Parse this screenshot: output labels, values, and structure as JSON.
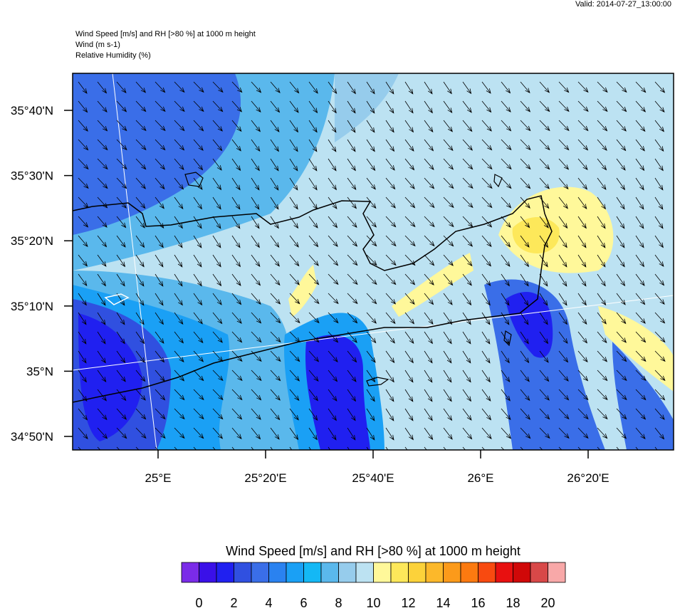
{
  "valid": "Valid: 2014-07-27_13:00:00",
  "header": [
    "Wind Speed [m/s] and RH [>80 %] at 1000 m height",
    "Wind   (m s-1)",
    "Relative Humidity   (%)"
  ],
  "lat_labels": [
    "35°40'N",
    "35°30'N",
    "35°20'N",
    "35°10'N",
    "35°N",
    "34°50'N"
  ],
  "lon_labels": [
    "25°E",
    "25°20'E",
    "25°40'E",
    "26°E",
    "26°20'E"
  ],
  "colorbar": {
    "title": "Wind Speed [m/s] and RH [>80 %] at 1000 m height",
    "colors": [
      "#7a2be8",
      "#3a10e8",
      "#2020f0",
      "#3050e0",
      "#3a6ee8",
      "#2a82f0",
      "#1aa0f5",
      "#14b8f5",
      "#5ab8ec",
      "#96ccec",
      "#bce2f2",
      "#fff89a",
      "#fde85a",
      "#fcd23a",
      "#fcb82a",
      "#fc9a1a",
      "#fc7a10",
      "#f84a10",
      "#e81010",
      "#d00808",
      "#d84848",
      "#f8a8a8"
    ],
    "ticks": [
      0,
      2,
      4,
      6,
      8,
      10,
      12,
      14,
      16,
      18,
      20
    ]
  }
}
